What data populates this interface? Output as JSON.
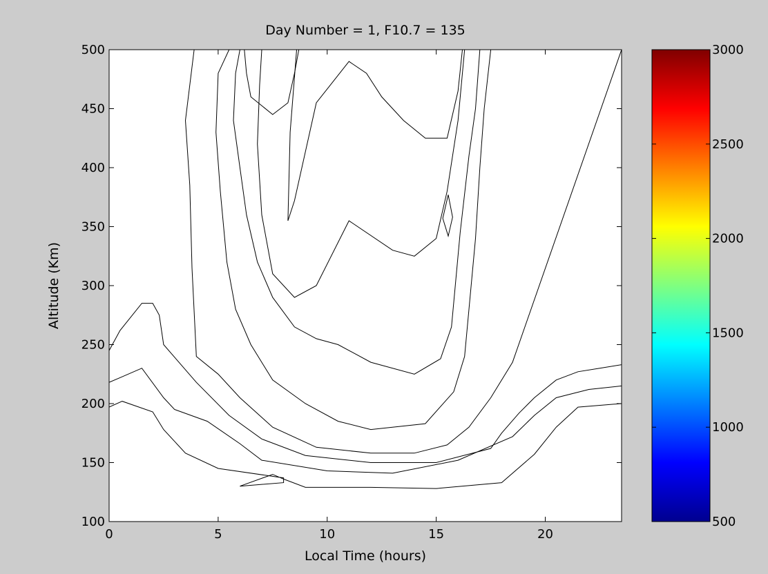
{
  "chart_data": [
    {
      "type": "contour",
      "title": "Day Number = 1, F10.7 = 135",
      "xlabel": "Local Time (hours)",
      "ylabel": "Altitude (Km)",
      "xlim": [
        0,
        23.5
      ],
      "ylim": [
        100,
        500
      ],
      "xticks": [
        "0",
        "5",
        "10",
        "15",
        "20"
      ],
      "yticks": [
        "100",
        "150",
        "200",
        "250",
        "300",
        "350",
        "400",
        "450",
        "500"
      ],
      "grid": false,
      "colormap": "jet",
      "levels": [
        500,
        750,
        1000,
        1250,
        1500,
        1750,
        2000,
        2250,
        2500
      ],
      "contours": [
        {
          "level": 500,
          "color": "#00008f",
          "x": [
            0.0,
            1.5,
            2.5,
            3.3,
            4.5,
            6.0,
            8.0,
            10.0,
            12.0,
            14.0,
            16.0,
            17.5,
            18.5,
            19.5,
            20.5,
            21.5,
            22.5,
            23.5,
            23.5,
            21.5,
            20.5,
            19.5,
            18.0,
            15.0,
            12.0,
            9.0,
            8.0,
            7.5,
            6.0,
            8.0,
            8.0,
            5.0,
            3.5,
            3.0,
            2.5,
            2.0,
            0.6,
            0.0
          ],
          "y": [
            500,
            500,
            500,
            500,
            500,
            500,
            500,
            500,
            500,
            500,
            500,
            500,
            500,
            500,
            500,
            500,
            500,
            500,
            200,
            197,
            180,
            157,
            133,
            128,
            129,
            129,
            136,
            140,
            130,
            133,
            137,
            145,
            158,
            168,
            178,
            193,
            202,
            197
          ]
        },
        {
          "level": 750,
          "color": "#0000ff",
          "x": [
            0.0,
            1.5,
            2.5,
            3.3,
            4.5,
            6.0,
            8.0,
            10.0,
            12.0,
            14.0,
            16.0,
            17.5,
            18.5,
            19.5,
            20.5,
            21.5,
            22.5,
            23.5,
            23.5,
            22.0,
            20.5,
            19.5,
            18.5,
            16.0,
            13.0,
            10.0,
            7.0,
            6.0,
            4.5,
            3.0,
            2.5,
            1.5,
            0.5,
            0.0
          ],
          "y": [
            500,
            500,
            500,
            500,
            500,
            500,
            500,
            500,
            500,
            500,
            500,
            500,
            500,
            500,
            500,
            500,
            500,
            500,
            215,
            212,
            205,
            190,
            172,
            152,
            141,
            143,
            152,
            166,
            185,
            195,
            205,
            230,
            222,
            218
          ]
        },
        {
          "level": 1000,
          "color": "#0050ff",
          "x": [
            0.0,
            1.5,
            2.5,
            3.3,
            4.5,
            6.0,
            8.0,
            10.0,
            12.0,
            14.0,
            16.0,
            17.5,
            18.5,
            19.5,
            20.5,
            21.5,
            22.5,
            23.5,
            23.5,
            22.5,
            21.5,
            20.5,
            19.5,
            18.8,
            18.0,
            17.5,
            15.0,
            12.0,
            9.0,
            7.0,
            5.5,
            4.0,
            2.5,
            2.3,
            2.0,
            1.5,
            0.5,
            0.0
          ],
          "y": [
            500,
            500,
            500,
            500,
            500,
            500,
            500,
            500,
            500,
            500,
            500,
            500,
            500,
            500,
            500,
            500,
            500,
            500,
            233,
            230,
            227,
            220,
            205,
            192,
            175,
            162,
            150,
            150,
            156,
            170,
            190,
            218,
            250,
            275,
            285,
            285,
            262,
            245
          ]
        },
        {
          "level": 1250,
          "color": "#00c0ff",
          "x": [
            3.9,
            4.5,
            5.5,
            7.0,
            8.5,
            10.0,
            11.5,
            13.0,
            14.5,
            15.5,
            16.5,
            17.5,
            18.3,
            19.0,
            20.3,
            21.0,
            22.0,
            22.7,
            23.5,
            23.5,
            18.5,
            17.5,
            16.5,
            15.5,
            14.0,
            12.0,
            9.5,
            7.5,
            6.0,
            5.0,
            4.0,
            3.8,
            3.7,
            3.5
          ],
          "y": [
            500,
            500,
            500,
            500,
            500,
            500,
            500,
            500,
            500,
            500,
            500,
            500,
            500,
            500,
            500,
            500,
            500,
            500,
            500,
            500,
            235,
            205,
            180,
            165,
            158,
            158,
            163,
            180,
            205,
            225,
            240,
            315,
            385,
            440
          ]
        },
        {
          "level": 1500,
          "color": "#40ffbf",
          "x": [
            5.5,
            8.0,
            10.5,
            13.0,
            15.5,
            17.5,
            17.2,
            17.0,
            16.8,
            16.3,
            15.8,
            14.5,
            12.0,
            10.5,
            9.0,
            7.5,
            6.5,
            5.8,
            5.4,
            5.1,
            4.9,
            5.0
          ],
          "y": [
            500,
            500,
            500,
            500,
            500,
            500,
            450,
            400,
            340,
            240,
            210,
            183,
            178,
            185,
            200,
            220,
            250,
            280,
            320,
            380,
            430,
            480
          ]
        },
        {
          "level": 1750,
          "color": "#a0ff60",
          "x": [
            6.0,
            8.0,
            10.5,
            13.0,
            15.5,
            17.0,
            16.8,
            16.5,
            16.1,
            15.7,
            15.2,
            14.0,
            12.0,
            10.5,
            9.5,
            8.5,
            7.5,
            6.8,
            6.3,
            6.0,
            5.7,
            5.8
          ],
          "y": [
            500,
            500,
            500,
            500,
            500,
            500,
            450,
            410,
            345,
            265,
            238,
            225,
            235,
            250,
            255,
            265,
            290,
            320,
            360,
            400,
            440,
            480
          ]
        },
        {
          "level": 2000,
          "color": "#ffff00",
          "x": [
            7.0,
            8.5,
            10.5,
            12.5,
            15.0,
            16.3,
            16.0,
            15.5,
            15.0,
            14.0,
            13.0,
            11.0,
            9.5,
            8.5,
            7.5,
            7.0,
            6.8,
            6.9
          ],
          "y": [
            500,
            500,
            500,
            500,
            500,
            500,
            440,
            380,
            340,
            325,
            330,
            355,
            300,
            290,
            310,
            360,
            420,
            470
          ]
        },
        {
          "level": 2000,
          "color": "#ffff00",
          "x": [
            15.3,
            15.55,
            15.75,
            15.55
          ],
          "y": [
            357,
            377,
            358,
            342
          ]
        },
        {
          "level": 2250,
          "color": "#ffbb00",
          "x": [
            8.6,
            9.2,
            10.2,
            11.0,
            12.2,
            13.6,
            15.0,
            16.2,
            16.0,
            15.5,
            14.5,
            13.5,
            12.5,
            11.8,
            11.0,
            9.5,
            8.5,
            8.2,
            8.3
          ],
          "y": [
            500,
            500,
            500,
            500,
            500,
            500,
            500,
            500,
            465,
            425,
            425,
            440,
            460,
            480,
            490,
            455,
            372,
            355,
            430
          ]
        },
        {
          "level": 2500,
          "color": "#ffaa00",
          "x": [
            6.2,
            8.7,
            8.5,
            8.2,
            7.5,
            6.5,
            6.3
          ],
          "y": [
            500,
            500,
            480,
            455,
            445,
            460,
            480
          ]
        }
      ],
      "colorbar": {
        "range": [
          500,
          3000
        ],
        "ticks": [
          "500",
          "1000",
          "1500",
          "2000",
          "2500",
          "3000"
        ]
      }
    }
  ]
}
